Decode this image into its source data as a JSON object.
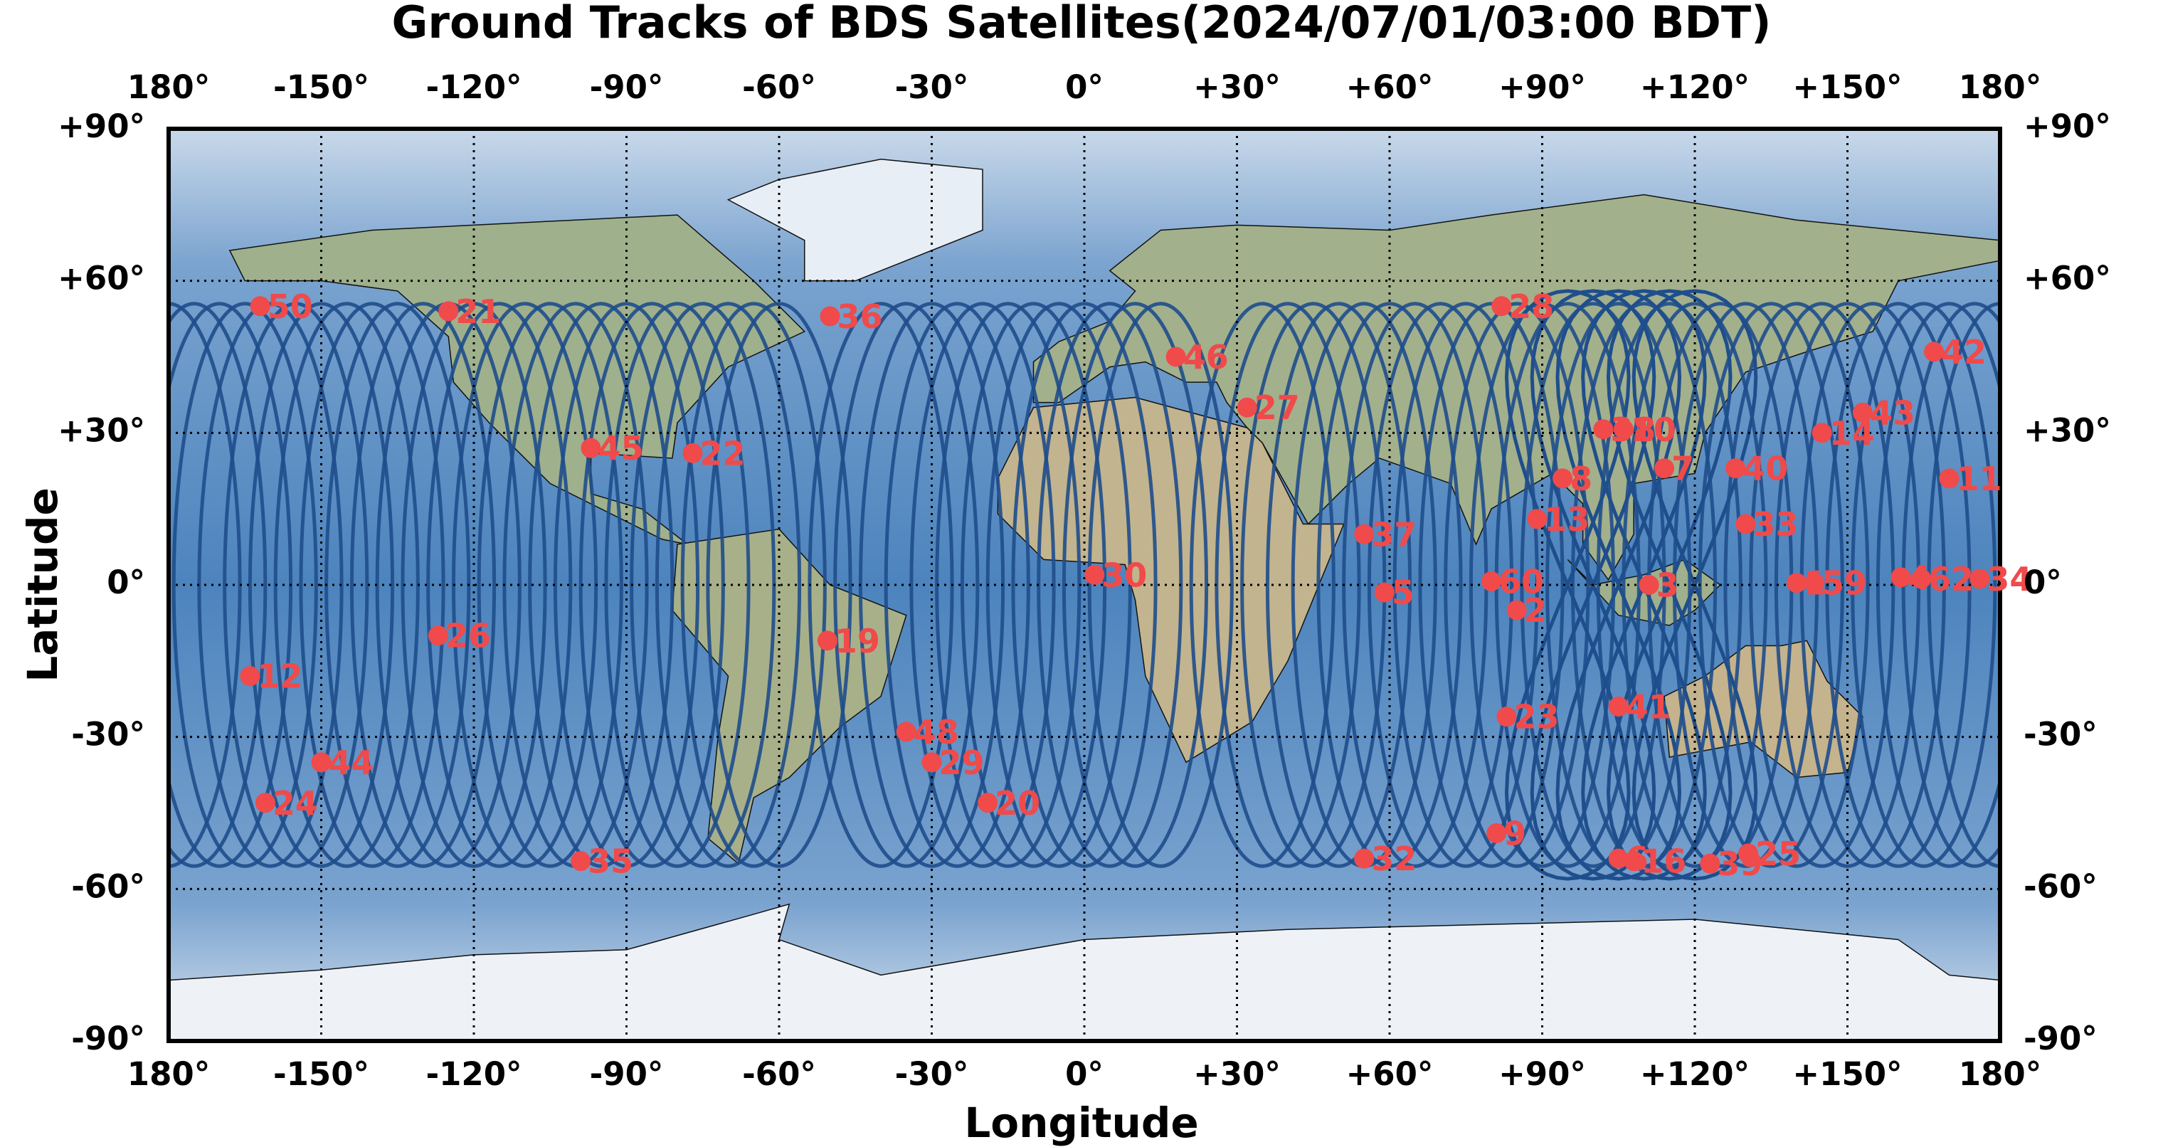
{
  "chart_data": {
    "type": "scatter",
    "title": "Ground Tracks of BDS Satellites(2024/07/01/03:00 BDT)",
    "xlabel": "Longitude",
    "ylabel": "Latitude",
    "xlim": [
      -180,
      180
    ],
    "ylim": [
      -90,
      90
    ],
    "xticks": [
      {
        "value": -180,
        "label": "180°"
      },
      {
        "value": -150,
        "label": "-150°"
      },
      {
        "value": -120,
        "label": "-120°"
      },
      {
        "value": -90,
        "label": "-90°"
      },
      {
        "value": -60,
        "label": "-60°"
      },
      {
        "value": -30,
        "label": "-30°"
      },
      {
        "value": 0,
        "label": "0°"
      },
      {
        "value": 30,
        "label": "+30°"
      },
      {
        "value": 60,
        "label": "+60°"
      },
      {
        "value": 90,
        "label": "+90°"
      },
      {
        "value": 120,
        "label": "+120°"
      },
      {
        "value": 150,
        "label": "+150°"
      },
      {
        "value": 180,
        "label": "180°"
      }
    ],
    "yticks": [
      {
        "value": -90,
        "label": "-90°"
      },
      {
        "value": -60,
        "label": "-60°"
      },
      {
        "value": -30,
        "label": "-30°"
      },
      {
        "value": 0,
        "label": "0°"
      },
      {
        "value": 30,
        "label": "+30°"
      },
      {
        "value": 60,
        "label": "+60°"
      },
      {
        "value": 90,
        "label": "+90°"
      }
    ],
    "grid": true,
    "color": "#f04a4a",
    "track_color": "#1f4e8c",
    "labels": [
      "50",
      "21",
      "36",
      "28",
      "46",
      "27",
      "45",
      "22",
      "37",
      "5",
      "30",
      "19",
      "26",
      "12",
      "48",
      "29",
      "44",
      "24",
      "20",
      "35",
      "32",
      "9",
      "60",
      "2",
      "13",
      "8",
      "23",
      "41",
      "6",
      "16",
      "3",
      "7",
      "38",
      "10",
      "40",
      "33",
      "39",
      "25",
      "14",
      "43",
      "42",
      "11",
      "1",
      "59",
      "4",
      "62",
      "34"
    ],
    "x": [
      -162,
      -125,
      -50,
      82,
      18,
      32,
      -97,
      -77,
      55,
      59,
      2,
      -50.5,
      -127,
      -164,
      -35,
      -30,
      -150,
      -161,
      -19,
      -99,
      55,
      81,
      80,
      85,
      89,
      94,
      83,
      105,
      105,
      108,
      111,
      114,
      102,
      106,
      128,
      130,
      123,
      130.5,
      145,
      153,
      167,
      170,
      140,
      143.5,
      160.5,
      164.5,
      176
    ],
    "y": [
      55,
      54,
      53,
      55,
      45,
      35,
      27,
      26,
      10,
      -1.5,
      2,
      -11,
      -10,
      -18,
      -29,
      -35,
      -35,
      -43,
      -43,
      -54.5,
      -54,
      -49,
      0.7,
      -5,
      13,
      21,
      -26,
      -24,
      -54,
      -54.5,
      0,
      23,
      30.7,
      30.7,
      23,
      12,
      -55,
      -53,
      30,
      34,
      46,
      21,
      0.4,
      0.4,
      1.5,
      1.2,
      1.2
    ]
  }
}
